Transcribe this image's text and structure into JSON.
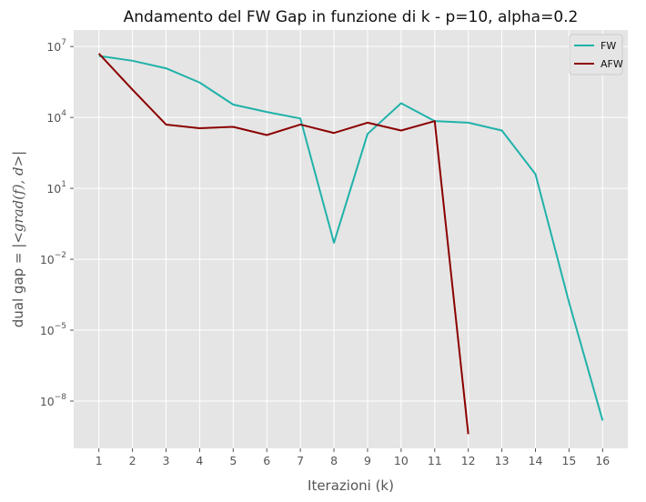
{
  "chart_data": {
    "type": "line",
    "title": "Andamento del FW Gap in funzione di k - p=10, alpha=0.2",
    "xlabel": "Iterazioni (k)",
    "ylabel_plain": "dual gap = |",
    "ylabel_math": "<grad(f), d>",
    "ylabel_tail": "|",
    "yscale": "log",
    "ylim": [
      1e-10,
      50000000.0
    ],
    "xlim": [
      0.25,
      16.75
    ],
    "grid": true,
    "legend_position": "top-right",
    "x_ticks": [
      1,
      2,
      3,
      4,
      5,
      6,
      7,
      8,
      9,
      10,
      11,
      12,
      13,
      14,
      15,
      16
    ],
    "y_ticks": [
      {
        "value": 10000000.0,
        "base": "10",
        "exp": "7"
      },
      {
        "value": 10000.0,
        "base": "10",
        "exp": "4"
      },
      {
        "value": 10.0,
        "base": "10",
        "exp": "1"
      },
      {
        "value": 0.01,
        "base": "10",
        "exp": "−2"
      },
      {
        "value": 1e-05,
        "base": "10",
        "exp": "−5"
      },
      {
        "value": 1e-08,
        "base": "10",
        "exp": "−8"
      }
    ],
    "series": [
      {
        "name": "FW",
        "color": "#20b2aa",
        "x": [
          1,
          2,
          3,
          4,
          5,
          6,
          7,
          8,
          9,
          10,
          11,
          12,
          13,
          14,
          15,
          16
        ],
        "y": [
          4000000.0,
          2500000.0,
          1200000.0,
          300000.0,
          35000.0,
          17000.0,
          9000.0,
          0.05,
          2000.0,
          40000.0,
          7000.0,
          6000.0,
          2800.0,
          40,
          0.00015,
          1.5e-09
        ]
      },
      {
        "name": "AFW",
        "color": "#8b0000",
        "x": [
          1,
          2,
          3,
          4,
          5,
          6,
          7,
          8,
          9,
          10,
          11,
          12
        ],
        "y": [
          5000000.0,
          150000.0,
          5000.0,
          3500.0,
          4000.0,
          1800.0,
          5000.0,
          2200.0,
          6000.0,
          2800.0,
          7000.0,
          4e-10
        ]
      }
    ]
  }
}
